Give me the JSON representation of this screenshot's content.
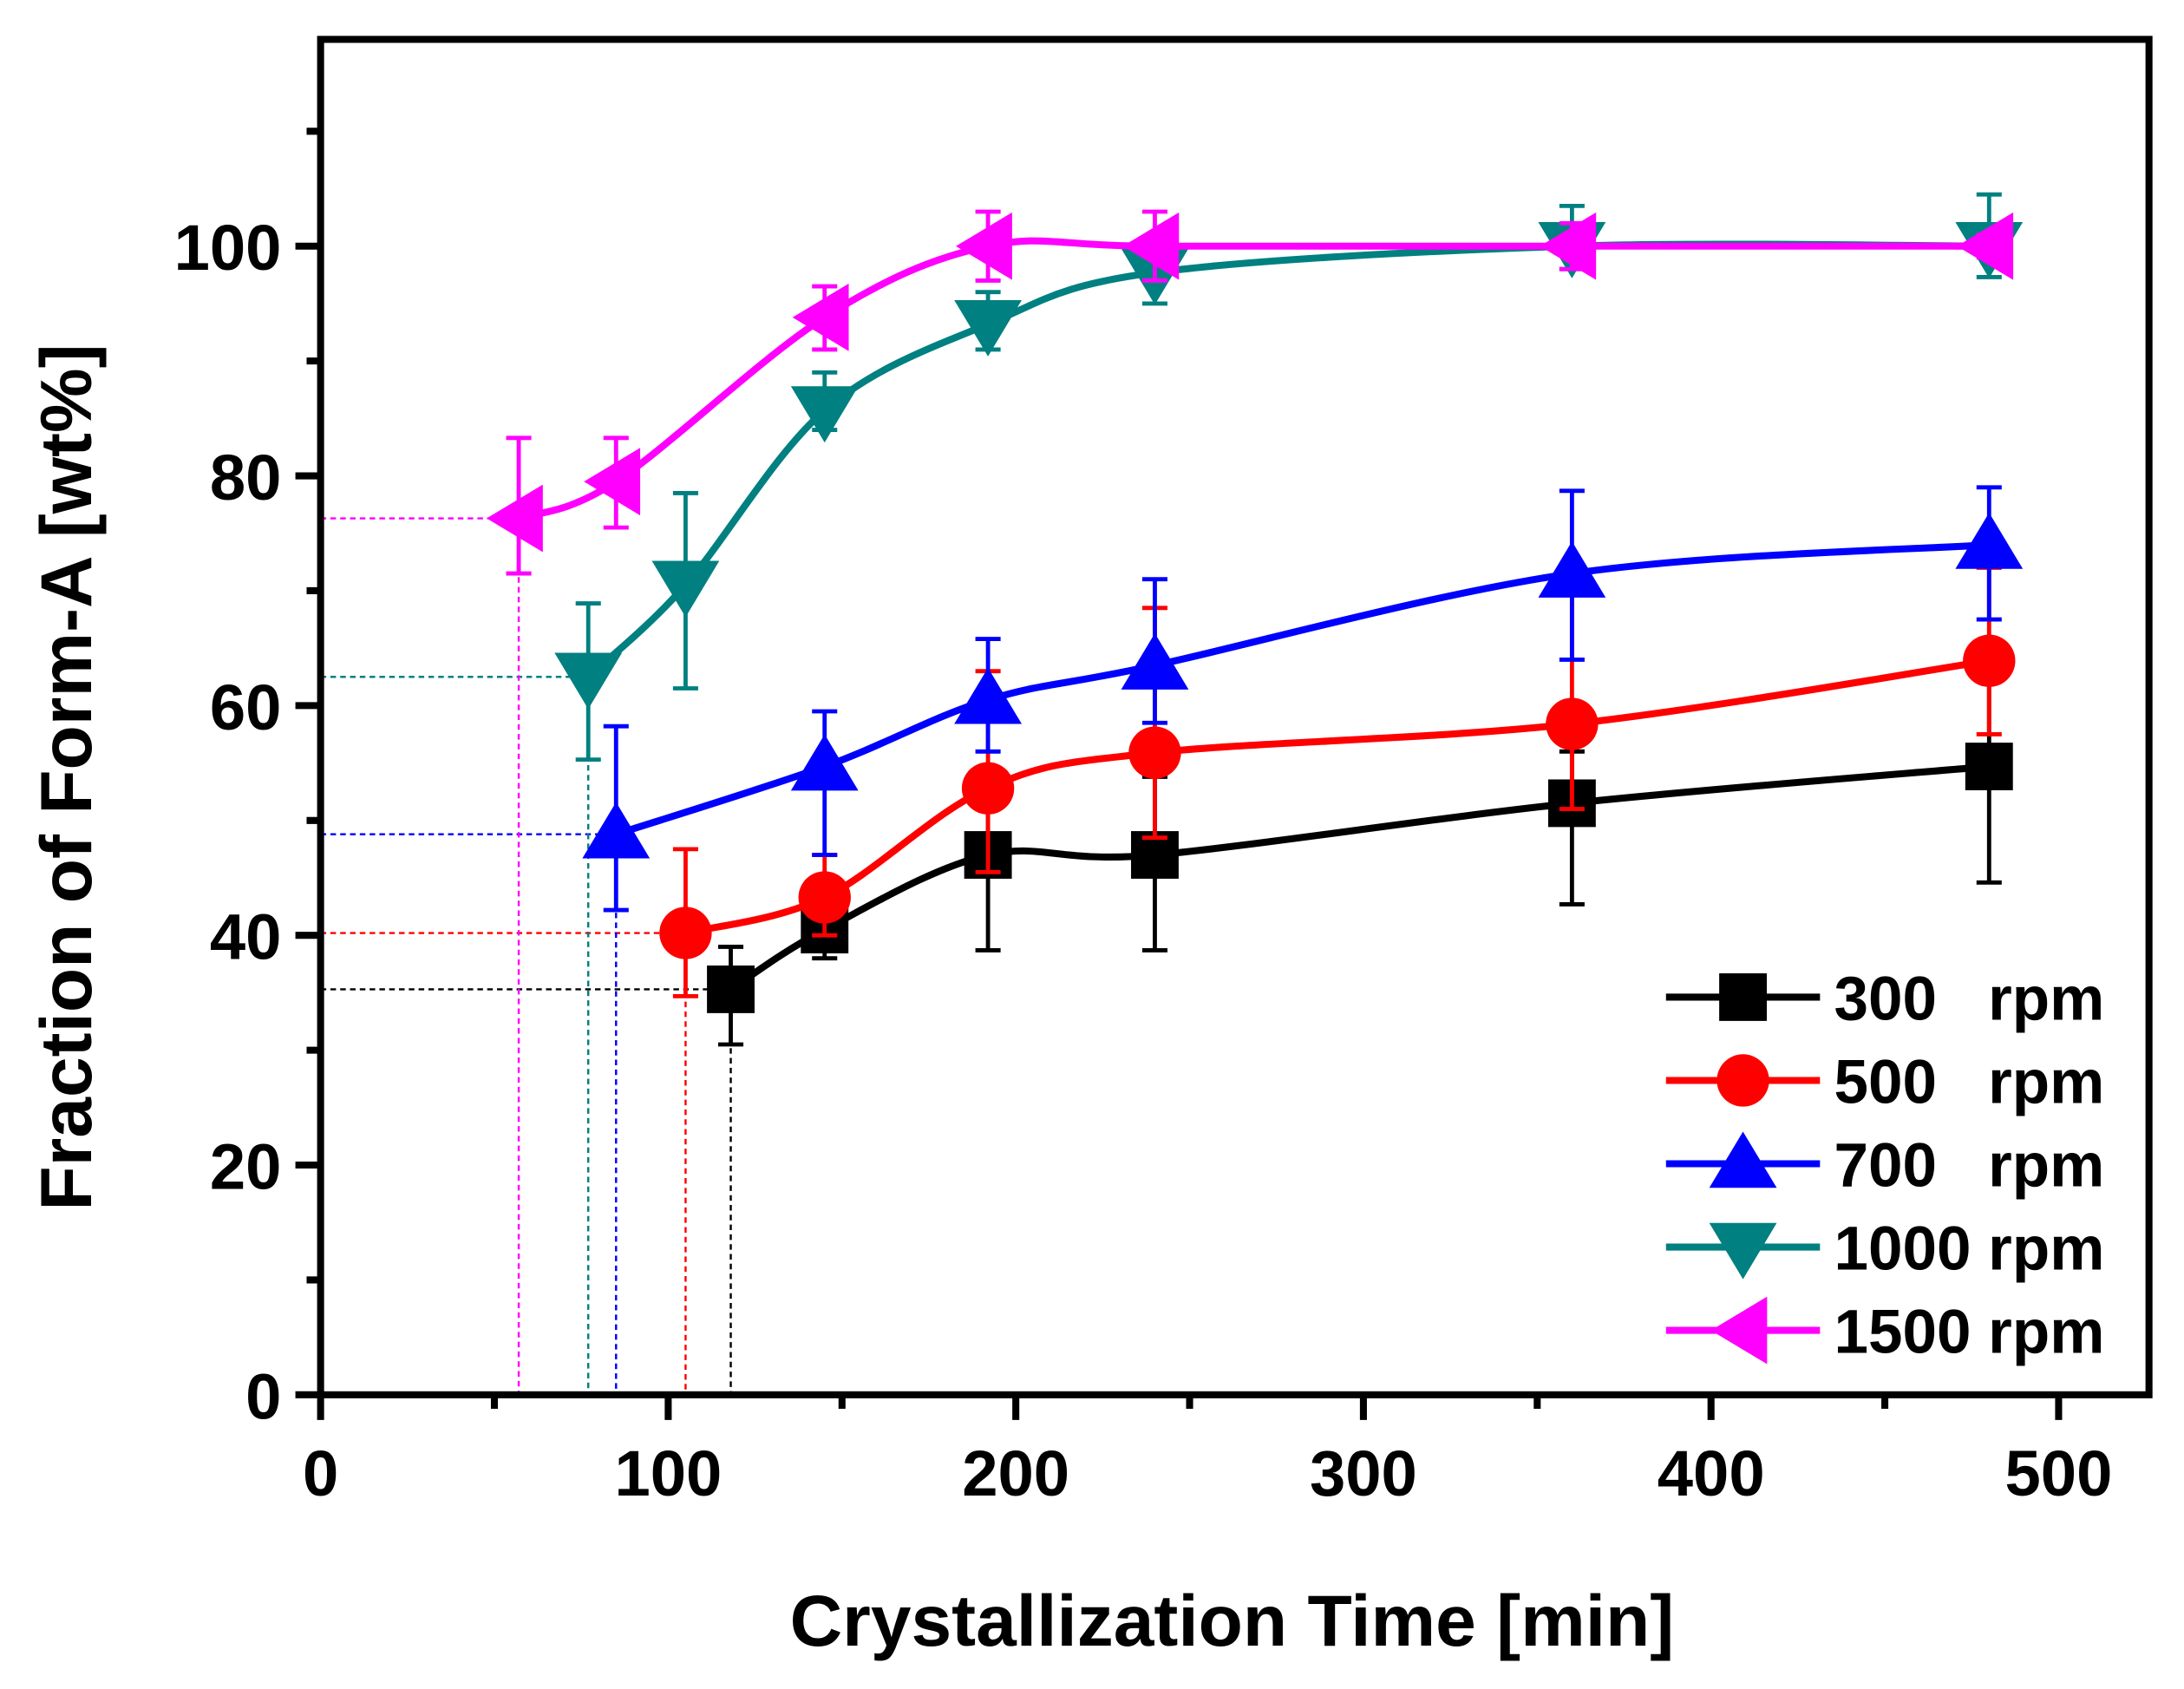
{
  "chart_data": {
    "type": "line",
    "title": "",
    "xlabel": "Crystallization Time [min]",
    "ylabel": "Fraction of Form-A [wt%]",
    "xlim": [
      0,
      526
    ],
    "ylim": [
      0,
      118
    ],
    "xticks": [
      0,
      100,
      200,
      300,
      400,
      500
    ],
    "yticks": [
      0,
      20,
      40,
      60,
      80,
      100
    ],
    "xtick_labels": [
      "0",
      "100",
      "200",
      "300",
      "400",
      "500"
    ],
    "ytick_labels": [
      "0",
      "20",
      "40",
      "60",
      "80",
      "100"
    ],
    "grid": false,
    "legend_position": "bottom-right",
    "series": [
      {
        "name": "300   rpm",
        "color": "#000000",
        "marker": "square",
        "x": [
          118,
          145,
          192,
          240,
          360,
          480
        ],
        "y": [
          35.3,
          40.5,
          47,
          47,
          51.5,
          54.7
        ],
        "err_hi": [
          39,
          42.5,
          53,
          53.8,
          56,
          62.8
        ],
        "err_lo": [
          30.5,
          38,
          38.7,
          38.7,
          42.7,
          44.6
        ]
      },
      {
        "name": "500   rpm",
        "color": "#ff0000",
        "marker": "circle",
        "x": [
          105,
          145,
          192,
          240,
          360,
          480
        ],
        "y": [
          40.2,
          43.3,
          52.8,
          55.9,
          58.4,
          63.9
        ],
        "err_hi": [
          47.5,
          47,
          63,
          68.5,
          72,
          72
        ],
        "err_lo": [
          34.7,
          40,
          45.5,
          48.5,
          51,
          57.5
        ]
      },
      {
        "name": "700   rpm",
        "color": "#0000ff",
        "marker": "triangle-up",
        "x": [
          85,
          145,
          192,
          240,
          360,
          480
        ],
        "y": [
          48.8,
          54.7,
          60.5,
          63.5,
          71.5,
          74
        ],
        "err_hi": [
          58.2,
          59.5,
          65.8,
          71,
          78.7,
          79
        ],
        "err_lo": [
          42.2,
          47,
          56,
          58.5,
          64,
          67.5
        ]
      },
      {
        "name": "1000 rpm",
        "color": "#008080",
        "marker": "triangle-down",
        "x": [
          77,
          105,
          145,
          192,
          240,
          360,
          480
        ],
        "y": [
          62.5,
          70.5,
          85.7,
          93.2,
          97.7,
          100,
          100
        ],
        "err_hi": [
          68.9,
          78.5,
          89,
          96,
          100,
          103.5,
          104.5
        ],
        "err_lo": [
          55.3,
          61.5,
          84,
          91,
          95,
          98,
          97.3
        ]
      },
      {
        "name": "1500 rpm",
        "color": "#ff00ff",
        "marker": "triangle-left",
        "x": [
          57,
          85,
          145,
          192,
          240,
          360,
          480
        ],
        "y": [
          76.3,
          79.5,
          93.8,
          100,
          100,
          100,
          100
        ],
        "err_hi": [
          83.3,
          83.3,
          96.5,
          103,
          103,
          102,
          101
        ],
        "err_lo": [
          71.5,
          75.5,
          91,
          97,
          97,
          98,
          99
        ]
      }
    ]
  }
}
